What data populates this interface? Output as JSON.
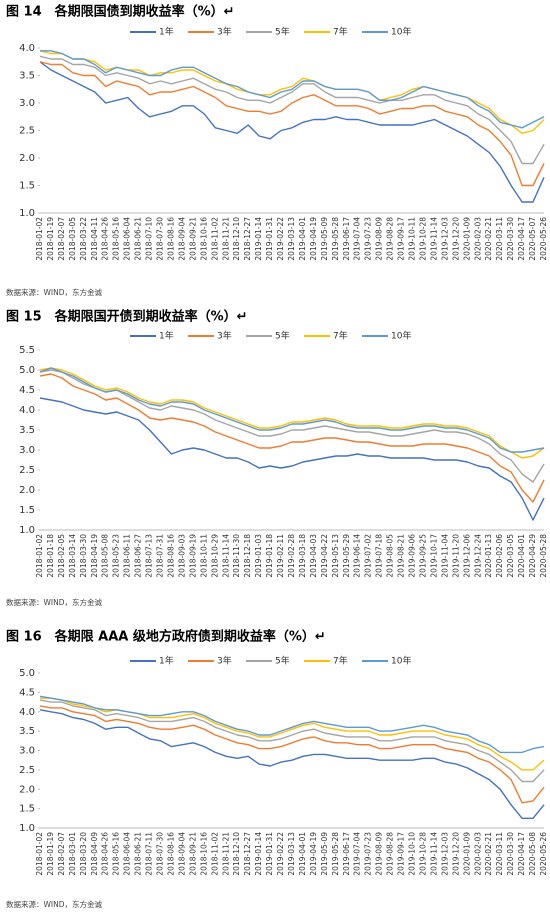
{
  "chart_data": [
    {
      "type": "line",
      "title": "图 14　各期限国债到期收益率（%）↵",
      "source": "数据来源：WIND，东方金诚",
      "categories": [
        "2018-01-02",
        "2018-01-19",
        "2018-02-07",
        "2018-03-05",
        "2018-03-22",
        "2018-04-11",
        "2018-04-26",
        "2018-05-16",
        "2018-06-04",
        "2018-06-21",
        "2018-07-10",
        "2018-07-30",
        "2018-08-16",
        "2018-09-04",
        "2018-09-21",
        "2018-10-16",
        "2018-11-02",
        "2018-11-21",
        "2018-12-10",
        "2018-12-27",
        "2019-01-14",
        "2019-01-31",
        "2019-02-22",
        "2019-03-13",
        "2019-04-01",
        "2019-04-19",
        "2019-05-09",
        "2019-05-28",
        "2019-06-17",
        "2019-07-04",
        "2019-07-23",
        "2019-08-09",
        "2019-08-28",
        "2019-09-17",
        "2019-10-11",
        "2019-10-28",
        "2019-11-14",
        "2019-12-03",
        "2019-12-20",
        "2020-01-09",
        "2020-02-03",
        "2020-02-21",
        "2020-03-11",
        "2020-03-30",
        "2020-04-17",
        "2020-05-07",
        "2020-05-26"
      ],
      "ylim": [
        1.0,
        4.0
      ],
      "yticks": [
        {
          "value": 1,
          "label": "1.0"
        },
        1.5,
        {
          "value": 2,
          "label": "2.0"
        },
        2.5,
        {
          "value": 3,
          "label": "3.0"
        },
        3.5,
        {
          "value": 4,
          "label": "4.0"
        }
      ],
      "series": [
        {
          "name": "1年",
          "color": "#4472c4",
          "values": [
            3.75,
            3.6,
            3.5,
            3.4,
            3.3,
            3.2,
            3.0,
            3.05,
            3.1,
            2.9,
            2.75,
            2.8,
            2.85,
            2.95,
            2.95,
            2.8,
            2.55,
            2.5,
            2.45,
            2.6,
            2.4,
            2.35,
            2.5,
            2.55,
            2.65,
            2.7,
            2.7,
            2.75,
            2.7,
            2.7,
            2.65,
            2.6,
            2.6,
            2.6,
            2.6,
            2.65,
            2.7,
            2.6,
            2.5,
            2.4,
            2.25,
            2.1,
            1.85,
            1.5,
            1.2,
            1.2,
            1.65
          ]
        },
        {
          "name": "3年",
          "color": "#ed7d31",
          "values": [
            3.75,
            3.7,
            3.7,
            3.55,
            3.5,
            3.5,
            3.3,
            3.4,
            3.35,
            3.3,
            3.15,
            3.2,
            3.2,
            3.25,
            3.3,
            3.2,
            3.1,
            2.95,
            2.9,
            2.85,
            2.85,
            2.8,
            2.85,
            3.0,
            3.1,
            3.15,
            3.05,
            2.95,
            2.95,
            2.95,
            2.9,
            2.8,
            2.85,
            2.9,
            2.9,
            2.95,
            2.95,
            2.85,
            2.8,
            2.75,
            2.6,
            2.5,
            2.3,
            2.05,
            1.5,
            1.5,
            1.9
          ]
        },
        {
          "name": "5年",
          "color": "#a5a5a5",
          "values": [
            3.85,
            3.8,
            3.8,
            3.7,
            3.7,
            3.65,
            3.5,
            3.55,
            3.5,
            3.45,
            3.35,
            3.4,
            3.35,
            3.4,
            3.45,
            3.35,
            3.25,
            3.2,
            3.1,
            3.05,
            3.05,
            3.0,
            3.1,
            3.2,
            3.35,
            3.35,
            3.2,
            3.1,
            3.1,
            3.1,
            3.05,
            3.0,
            3.05,
            3.05,
            3.1,
            3.15,
            3.15,
            3.05,
            3.0,
            2.95,
            2.8,
            2.7,
            2.5,
            2.3,
            1.9,
            1.9,
            2.25
          ]
        },
        {
          "name": "7年",
          "color": "#ffc000",
          "values": [
            3.95,
            3.9,
            3.9,
            3.8,
            3.8,
            3.75,
            3.6,
            3.65,
            3.6,
            3.6,
            3.5,
            3.55,
            3.55,
            3.6,
            3.6,
            3.5,
            3.4,
            3.35,
            3.25,
            3.2,
            3.15,
            3.15,
            3.25,
            3.3,
            3.45,
            3.4,
            3.3,
            3.25,
            3.25,
            3.25,
            3.2,
            3.05,
            3.1,
            3.15,
            3.25,
            3.3,
            3.25,
            3.2,
            3.15,
            3.1,
            3.0,
            2.9,
            2.7,
            2.6,
            2.45,
            2.5,
            2.7
          ]
        },
        {
          "name": "10年",
          "color": "#5b9bd5",
          "values": [
            3.95,
            3.95,
            3.9,
            3.8,
            3.8,
            3.7,
            3.55,
            3.65,
            3.6,
            3.55,
            3.5,
            3.5,
            3.6,
            3.65,
            3.65,
            3.55,
            3.45,
            3.35,
            3.3,
            3.2,
            3.15,
            3.1,
            3.2,
            3.25,
            3.4,
            3.4,
            3.3,
            3.25,
            3.25,
            3.25,
            3.2,
            3.05,
            3.05,
            3.1,
            3.2,
            3.3,
            3.25,
            3.2,
            3.15,
            3.1,
            2.95,
            2.85,
            2.65,
            2.6,
            2.55,
            2.65,
            2.75
          ]
        }
      ]
    },
    {
      "type": "line",
      "title": "图 15　各期限国开债到期收益率（%）↵",
      "source": "数据来源：WIND，东方金诚",
      "categories": [
        "2018-01-02",
        "2018-01-18",
        "2018-02-05",
        "2018-03-14",
        "2018-03-30",
        "2018-04-19",
        "2018-05-08",
        "2018-05-23",
        "2018-06-11",
        "2018-06-27",
        "2018-07-13",
        "2018-07-31",
        "2018-08-16",
        "2018-09-03",
        "2018-09-19",
        "2018-10-11",
        "2018-10-29",
        "2018-11-14",
        "2018-11-30",
        "2018-12-18",
        "2019-01-03",
        "2019-01-18",
        "2019-02-11",
        "2019-02-28",
        "2019-03-18",
        "2019-04-03",
        "2019-04-22",
        "2019-05-13",
        "2019-05-29",
        "2019-06-14",
        "2019-07-02",
        "2019-07-18",
        "2019-08-05",
        "2019-08-21",
        "2019-09-06",
        "2019-09-25",
        "2019-10-17",
        "2019-11-04",
        "2019-11-20",
        "2019-12-06",
        "2019-12-24",
        "2020-01-13",
        "2020-02-06",
        "2020-03-05",
        "2020-04-01",
        "2020-04-29",
        "2020-05-28"
      ],
      "ylim": [
        1.0,
        5.5
      ],
      "yticks": [
        {
          "value": 1,
          "label": "1.0"
        },
        1.5,
        {
          "value": 2,
          "label": "2.0"
        },
        2.5,
        {
          "value": 3,
          "label": "3.0"
        },
        3.5,
        {
          "value": 4,
          "label": "4.0"
        },
        4.5,
        {
          "value": 5,
          "label": "5.0"
        },
        5.5
      ],
      "series": [
        {
          "name": "1年",
          "color": "#4472c4",
          "values": [
            4.3,
            4.25,
            4.2,
            4.1,
            4.0,
            3.95,
            3.9,
            3.95,
            3.85,
            3.75,
            3.5,
            3.2,
            2.9,
            3.0,
            3.05,
            3.0,
            2.9,
            2.8,
            2.8,
            2.7,
            2.55,
            2.6,
            2.55,
            2.6,
            2.7,
            2.75,
            2.8,
            2.85,
            2.85,
            2.9,
            2.85,
            2.85,
            2.8,
            2.8,
            2.8,
            2.8,
            2.75,
            2.75,
            2.75,
            2.7,
            2.6,
            2.55,
            2.35,
            2.2,
            1.8,
            1.25,
            1.8
          ]
        },
        {
          "name": "3年",
          "color": "#ed7d31",
          "values": [
            4.85,
            4.9,
            4.8,
            4.6,
            4.5,
            4.4,
            4.25,
            4.3,
            4.15,
            4.0,
            3.8,
            3.75,
            3.8,
            3.75,
            3.7,
            3.6,
            3.45,
            3.35,
            3.25,
            3.15,
            3.05,
            3.05,
            3.1,
            3.2,
            3.2,
            3.25,
            3.3,
            3.3,
            3.25,
            3.2,
            3.2,
            3.15,
            3.1,
            3.1,
            3.1,
            3.15,
            3.15,
            3.15,
            3.1,
            3.05,
            2.95,
            2.85,
            2.6,
            2.45,
            2.0,
            1.7,
            2.25
          ]
        },
        {
          "name": "5年",
          "color": "#a5a5a5",
          "values": [
            4.95,
            5.0,
            4.95,
            4.8,
            4.65,
            4.55,
            4.45,
            4.5,
            4.35,
            4.2,
            4.05,
            4.0,
            4.1,
            4.05,
            4.0,
            3.9,
            3.75,
            3.65,
            3.55,
            3.45,
            3.35,
            3.35,
            3.4,
            3.5,
            3.5,
            3.55,
            3.6,
            3.55,
            3.5,
            3.45,
            3.45,
            3.4,
            3.35,
            3.35,
            3.4,
            3.45,
            3.5,
            3.45,
            3.45,
            3.4,
            3.3,
            3.15,
            2.9,
            2.75,
            2.4,
            2.2,
            2.65
          ]
        },
        {
          "name": "7年",
          "color": "#ffc000",
          "values": [
            5.0,
            5.05,
            5.0,
            4.9,
            4.75,
            4.6,
            4.5,
            4.55,
            4.45,
            4.3,
            4.2,
            4.15,
            4.25,
            4.25,
            4.2,
            4.05,
            3.95,
            3.85,
            3.75,
            3.65,
            3.55,
            3.55,
            3.6,
            3.7,
            3.7,
            3.75,
            3.8,
            3.75,
            3.65,
            3.6,
            3.6,
            3.6,
            3.55,
            3.55,
            3.6,
            3.65,
            3.65,
            3.6,
            3.6,
            3.55,
            3.45,
            3.35,
            3.1,
            2.95,
            2.8,
            2.85,
            3.05
          ]
        },
        {
          "name": "10年",
          "color": "#5b9bd5",
          "values": [
            4.95,
            5.05,
            4.95,
            4.85,
            4.7,
            4.55,
            4.45,
            4.5,
            4.4,
            4.25,
            4.15,
            4.1,
            4.2,
            4.2,
            4.15,
            4.0,
            3.9,
            3.8,
            3.7,
            3.6,
            3.5,
            3.5,
            3.55,
            3.65,
            3.65,
            3.7,
            3.75,
            3.7,
            3.6,
            3.55,
            3.55,
            3.55,
            3.5,
            3.5,
            3.55,
            3.6,
            3.6,
            3.55,
            3.55,
            3.5,
            3.4,
            3.3,
            3.05,
            2.95,
            2.95,
            3.0,
            3.05
          ]
        }
      ]
    },
    {
      "type": "line",
      "title": "图 16　各期限 AAA 级地方政府债到期收益率（%）↵",
      "source": "数据来源：WIND，东方金诚",
      "categories": [
        "2018-01-02",
        "2018-01-19",
        "2018-02-07",
        "2018-03-01",
        "2018-03-20",
        "2018-04-09",
        "2018-04-26",
        "2018-05-16",
        "2018-06-04",
        "2018-06-21",
        "2018-07-11",
        "2018-07-30",
        "2018-08-16",
        "2018-09-04",
        "2018-09-21",
        "2018-10-16",
        "2018-11-02",
        "2018-11-21",
        "2018-12-10",
        "2018-12-27",
        "2019-01-14",
        "2019-01-31",
        "2019-02-22",
        "2019-03-13",
        "2019-04-01",
        "2019-04-19",
        "2019-05-09",
        "2019-05-28",
        "2019-06-17",
        "2019-07-04",
        "2019-07-23",
        "2019-08-09",
        "2019-08-28",
        "2019-09-17",
        "2019-10-10",
        "2019-10-28",
        "2019-11-14",
        "2019-12-03",
        "2019-12-20",
        "2020-01-09",
        "2020-02-03",
        "2020-02-21",
        "2020-03-11",
        "2020-03-30",
        "2020-04-17",
        "2020-05-08",
        "2020-05-26"
      ],
      "ylim": [
        1.0,
        5.0
      ],
      "yticks": [
        {
          "value": 1,
          "label": "1.0"
        },
        1.5,
        {
          "value": 2,
          "label": "2.0"
        },
        2.5,
        {
          "value": 3,
          "label": "3.0"
        },
        3.5,
        {
          "value": 4,
          "label": "4.0"
        },
        4.5,
        {
          "value": 5,
          "label": "5.0"
        }
      ],
      "series": [
        {
          "name": "1年",
          "color": "#4472c4",
          "values": [
            4.05,
            4.0,
            3.95,
            3.85,
            3.8,
            3.7,
            3.55,
            3.6,
            3.6,
            3.45,
            3.3,
            3.25,
            3.1,
            3.15,
            3.2,
            3.1,
            2.95,
            2.85,
            2.8,
            2.85,
            2.65,
            2.6,
            2.7,
            2.75,
            2.85,
            2.9,
            2.9,
            2.85,
            2.8,
            2.8,
            2.8,
            2.75,
            2.75,
            2.75,
            2.75,
            2.8,
            2.8,
            2.7,
            2.65,
            2.55,
            2.4,
            2.25,
            2.0,
            1.6,
            1.25,
            1.25,
            1.6
          ]
        },
        {
          "name": "3年",
          "color": "#ed7d31",
          "values": [
            4.15,
            4.1,
            4.1,
            4.0,
            3.95,
            3.9,
            3.75,
            3.8,
            3.75,
            3.7,
            3.6,
            3.55,
            3.55,
            3.6,
            3.65,
            3.55,
            3.4,
            3.3,
            3.2,
            3.15,
            3.05,
            3.05,
            3.1,
            3.2,
            3.3,
            3.35,
            3.25,
            3.2,
            3.2,
            3.15,
            3.15,
            3.05,
            3.05,
            3.1,
            3.15,
            3.15,
            3.15,
            3.05,
            3.0,
            2.95,
            2.8,
            2.7,
            2.5,
            2.25,
            1.65,
            1.7,
            2.05
          ]
        },
        {
          "name": "5年",
          "color": "#a5a5a5",
          "values": [
            4.3,
            4.25,
            4.25,
            4.15,
            4.1,
            4.05,
            3.9,
            3.95,
            3.9,
            3.85,
            3.75,
            3.75,
            3.75,
            3.8,
            3.85,
            3.75,
            3.6,
            3.5,
            3.4,
            3.35,
            3.25,
            3.25,
            3.3,
            3.4,
            3.5,
            3.55,
            3.45,
            3.4,
            3.35,
            3.35,
            3.35,
            3.25,
            3.25,
            3.3,
            3.35,
            3.35,
            3.35,
            3.25,
            3.2,
            3.15,
            3.0,
            2.9,
            2.7,
            2.5,
            2.2,
            2.2,
            2.5
          ]
        },
        {
          "name": "7年",
          "color": "#ffc000",
          "values": [
            4.35,
            4.35,
            4.3,
            4.2,
            4.15,
            4.1,
            4.0,
            4.05,
            4.0,
            3.95,
            3.85,
            3.85,
            3.85,
            3.9,
            3.95,
            3.85,
            3.7,
            3.6,
            3.5,
            3.45,
            3.35,
            3.35,
            3.45,
            3.55,
            3.65,
            3.7,
            3.6,
            3.55,
            3.5,
            3.5,
            3.5,
            3.4,
            3.4,
            3.45,
            3.5,
            3.5,
            3.5,
            3.4,
            3.35,
            3.3,
            3.15,
            3.05,
            2.85,
            2.7,
            2.5,
            2.5,
            2.75
          ]
        },
        {
          "name": "10年",
          "color": "#5b9bd5",
          "values": [
            4.4,
            4.35,
            4.3,
            4.25,
            4.2,
            4.1,
            4.05,
            4.05,
            4.0,
            3.95,
            3.9,
            3.9,
            3.95,
            4.0,
            4.0,
            3.9,
            3.75,
            3.65,
            3.55,
            3.5,
            3.4,
            3.4,
            3.5,
            3.6,
            3.7,
            3.75,
            3.7,
            3.65,
            3.6,
            3.6,
            3.6,
            3.5,
            3.5,
            3.55,
            3.6,
            3.65,
            3.6,
            3.5,
            3.45,
            3.4,
            3.25,
            3.15,
            2.95,
            2.95,
            2.95,
            3.05,
            3.1
          ]
        }
      ]
    }
  ]
}
